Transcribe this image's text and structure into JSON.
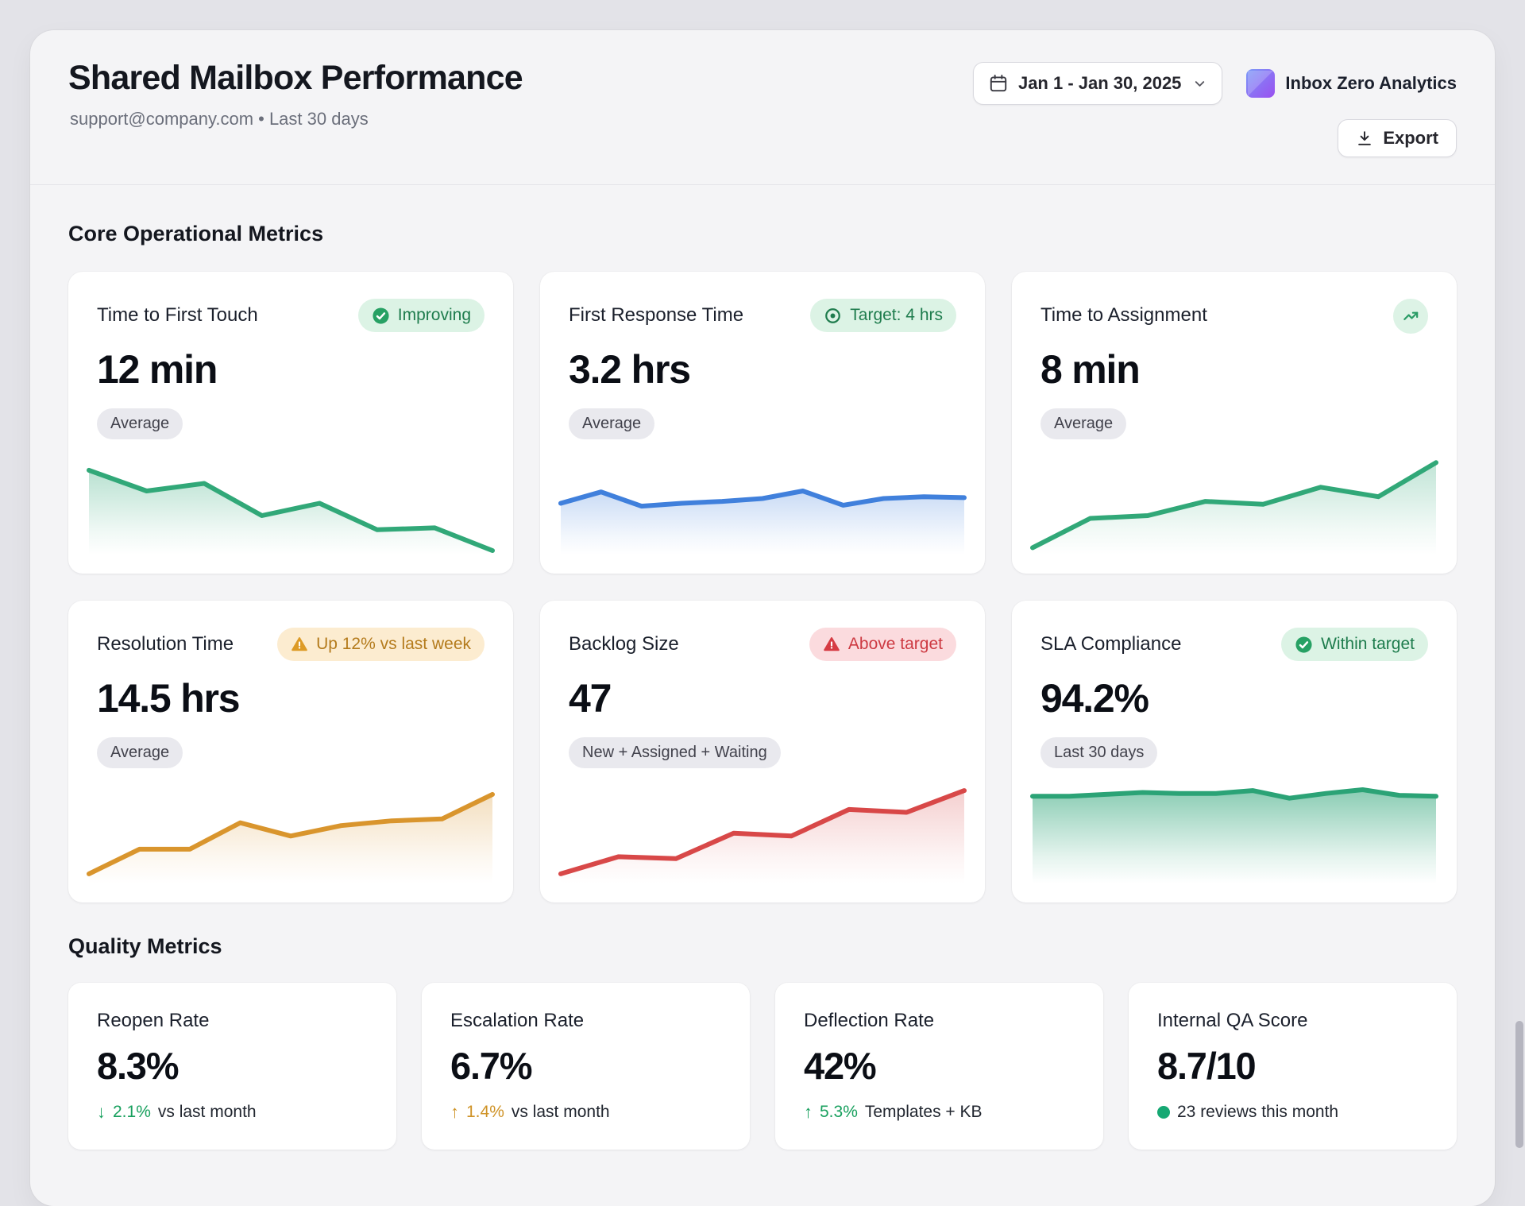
{
  "header": {
    "title": "Shared Mailbox Performance",
    "subtitle": "support@company.com • Last 30 days",
    "date_range": "Jan 1 - Jan 30, 2025",
    "brand_name": "Inbox Zero Analytics",
    "export_label": "Export"
  },
  "core_section": {
    "heading": "Core Operational Metrics",
    "cards": [
      {
        "title": "Time to First Touch",
        "value": "12 min",
        "context_pill": "Average",
        "badge": {
          "style": "success",
          "icon": "check-circle",
          "label": "Improving"
        },
        "sparkline": {
          "type": "area",
          "color": "#31a878",
          "fill_opacity": 0.34,
          "values": [
            85,
            63,
            71,
            37,
            50,
            22,
            24,
            0
          ]
        }
      },
      {
        "title": "First Response Time",
        "value": "3.2 hrs",
        "context_pill": "Average",
        "badge": {
          "style": "success",
          "icon": "target",
          "label": "Target: 4 hrs"
        },
        "sparkline": {
          "type": "area",
          "color": "#4080dc",
          "fill_opacity": 0.28,
          "values": [
            50,
            62,
            47,
            50,
            52,
            55,
            63,
            48,
            55,
            57,
            56
          ]
        }
      },
      {
        "title": "Time to Assignment",
        "value": "8 min",
        "context_pill": "Average",
        "corner_icon": "trending-up",
        "sparkline": {
          "type": "area",
          "color": "#31a878",
          "fill_opacity": 0.3,
          "values": [
            3,
            34,
            37,
            52,
            49,
            67,
            57,
            93
          ]
        }
      },
      {
        "title": "Resolution Time",
        "value": "14.5 hrs",
        "context_pill": "Average",
        "badge": {
          "style": "warning",
          "icon": "warning-triangle",
          "label": "Up 12% vs last week"
        },
        "sparkline": {
          "type": "area",
          "color": "#d9952d",
          "fill_opacity": 0.3,
          "values": [
            6,
            32,
            32,
            60,
            46,
            57,
            62,
            64,
            90
          ]
        }
      },
      {
        "title": "Backlog Size",
        "value": "47",
        "context_pill": "New + Assigned + Waiting",
        "badge": {
          "style": "danger",
          "icon": "warning-triangle",
          "label": "Above target"
        },
        "sparkline": {
          "type": "area",
          "color": "#d84848",
          "fill_opacity": 0.26,
          "values": [
            6,
            24,
            22,
            49,
            46,
            74,
            71,
            94
          ]
        }
      },
      {
        "title": "SLA Compliance",
        "value": "94.2%",
        "context_pill": "Last 30 days",
        "badge": {
          "style": "success",
          "icon": "check-circle",
          "label": "Within target"
        },
        "sparkline": {
          "type": "area",
          "color": "#2ba376",
          "fill_opacity": 0.55,
          "values": [
            88,
            88,
            90,
            92,
            91,
            91,
            94,
            86,
            91,
            95,
            89,
            88
          ]
        }
      }
    ]
  },
  "quality_section": {
    "heading": "Quality Metrics",
    "cards": [
      {
        "title": "Reopen Rate",
        "value": "8.3%",
        "delta": {
          "icon": "arrow-down",
          "color": "green",
          "value": "2.1%",
          "text": "vs last month"
        }
      },
      {
        "title": "Escalation Rate",
        "value": "6.7%",
        "delta": {
          "icon": "arrow-up",
          "color": "amber",
          "value": "1.4%",
          "text": "vs last month"
        }
      },
      {
        "title": "Deflection Rate",
        "value": "42%",
        "delta": {
          "icon": "arrow-up",
          "color": "green",
          "value": "5.3%",
          "text": "Templates + KB"
        }
      },
      {
        "title": "Internal QA Score",
        "value": "8.7/10",
        "delta": {
          "icon": "dot",
          "color": "green",
          "value": "",
          "text": "23 reviews this month"
        }
      }
    ]
  },
  "badge_colors": {
    "success_bg": "#dcf3e5",
    "success_text": "#1e7c4d",
    "success_icon": "#27a164",
    "warning_bg": "#fcecd0",
    "warning_text": "#b47b1c",
    "warning_icon": "#dd9b26",
    "danger_bg": "#fbdbde",
    "danger_text": "#cd3a42",
    "danger_icon": "#d63b43"
  }
}
